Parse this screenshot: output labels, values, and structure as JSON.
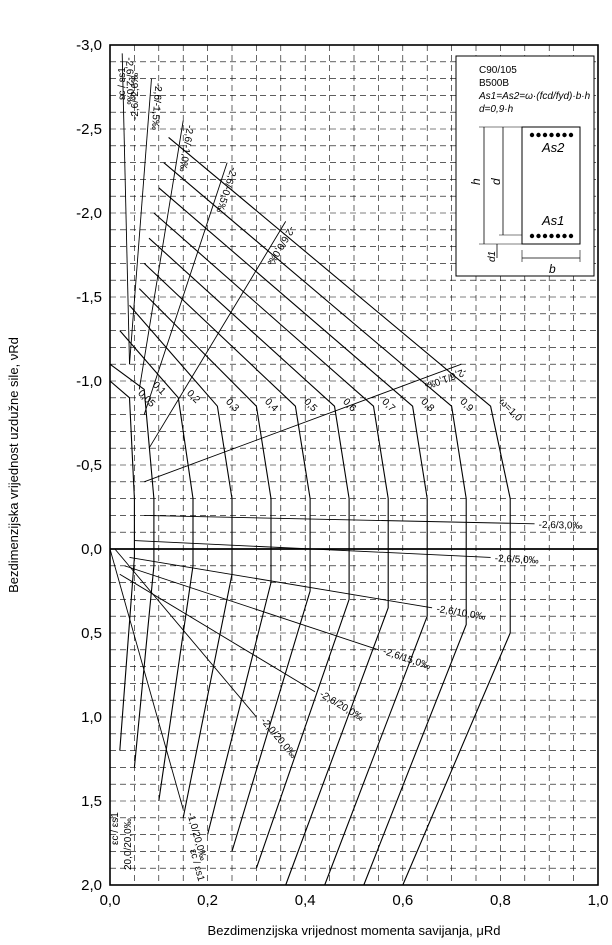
{
  "chart_data": {
    "type": "line",
    "title": "",
    "xlabel": "Bezdimenzijska vrijednost momenta savijanja, μRd",
    "ylabel": "Bezdimenzijska vrijednost uzdužne sile, νRd",
    "xlim": [
      0,
      1.0
    ],
    "ylim": [
      -3.0,
      2.0
    ],
    "y_inverted": true,
    "grid": true,
    "x_ticks": [
      0.0,
      0.2,
      0.4,
      0.6,
      0.8,
      1.0
    ],
    "y_ticks": [
      -3.0,
      -2.5,
      -2.0,
      -1.5,
      -1.0,
      -0.5,
      0.0,
      0.5,
      1.0,
      1.5,
      2.0
    ],
    "x_tick_labels": [
      "0,0",
      "0,2",
      "0,4",
      "0,6",
      "0,8",
      "1,0"
    ],
    "y_tick_labels": [
      "-3,0",
      "-2,5",
      "-2,0",
      "-1,5",
      "-1,0",
      "-0,5",
      "0,0",
      "0,5",
      "1,0",
      "1,5",
      "2,0"
    ],
    "omega_labels": [
      "0,05",
      "0,1",
      "0,2",
      "0,3",
      "0,4",
      "0,5",
      "0,6",
      "0,7",
      "0,8",
      "0,9",
      "ω=1,0"
    ],
    "omega_series": [
      {
        "omega": 0.05,
        "points": [
          [
            0.0,
            -1.0
          ],
          [
            0.04,
            -0.9
          ],
          [
            0.05,
            -0.3
          ],
          [
            0.05,
            0.05
          ],
          [
            0.02,
            1.2
          ]
        ]
      },
      {
        "omega": 0.1,
        "points": [
          [
            0.0,
            -1.1
          ],
          [
            0.07,
            -0.95
          ],
          [
            0.09,
            -0.3
          ],
          [
            0.09,
            0.1
          ],
          [
            0.05,
            1.3
          ]
        ]
      },
      {
        "omega": 0.2,
        "points": [
          [
            0.02,
            -1.3
          ],
          [
            0.14,
            -0.9
          ],
          [
            0.17,
            -0.3
          ],
          [
            0.17,
            0.1
          ],
          [
            0.1,
            1.5
          ]
        ]
      },
      {
        "omega": 0.3,
        "points": [
          [
            0.04,
            -1.45
          ],
          [
            0.22,
            -0.85
          ],
          [
            0.25,
            -0.3
          ],
          [
            0.25,
            0.15
          ],
          [
            0.15,
            1.6
          ]
        ]
      },
      {
        "omega": 0.4,
        "points": [
          [
            0.06,
            -1.55
          ],
          [
            0.3,
            -0.85
          ],
          [
            0.33,
            -0.3
          ],
          [
            0.33,
            0.2
          ],
          [
            0.2,
            1.7
          ]
        ]
      },
      {
        "omega": 0.5,
        "points": [
          [
            0.07,
            -1.7
          ],
          [
            0.38,
            -0.85
          ],
          [
            0.41,
            -0.3
          ],
          [
            0.41,
            0.25
          ],
          [
            0.25,
            1.8
          ]
        ]
      },
      {
        "omega": 0.6,
        "points": [
          [
            0.08,
            -1.85
          ],
          [
            0.46,
            -0.85
          ],
          [
            0.49,
            -0.3
          ],
          [
            0.49,
            0.3
          ],
          [
            0.3,
            1.9
          ]
        ]
      },
      {
        "omega": 0.7,
        "points": [
          [
            0.09,
            -2.0
          ],
          [
            0.54,
            -0.85
          ],
          [
            0.57,
            -0.3
          ],
          [
            0.57,
            0.35
          ],
          [
            0.36,
            2.0
          ]
        ]
      },
      {
        "omega": 0.8,
        "points": [
          [
            0.1,
            -2.15
          ],
          [
            0.62,
            -0.85
          ],
          [
            0.65,
            -0.3
          ],
          [
            0.65,
            0.4
          ],
          [
            0.44,
            2.0
          ]
        ]
      },
      {
        "omega": 0.9,
        "points": [
          [
            0.11,
            -2.3
          ],
          [
            0.7,
            -0.85
          ],
          [
            0.73,
            -0.3
          ],
          [
            0.73,
            0.45
          ],
          [
            0.52,
            2.0
          ]
        ]
      },
      {
        "omega": 1.0,
        "points": [
          [
            0.12,
            -2.45
          ],
          [
            0.78,
            -0.85
          ],
          [
            0.82,
            -0.3
          ],
          [
            0.82,
            0.5
          ],
          [
            0.6,
            2.0
          ]
        ]
      }
    ],
    "strain_labels": [
      "-2,6/-2,0‰",
      "-2,6/-1,5‰",
      "-2,6/-1,0‰",
      "-2,6/-0,5‰",
      "-2,6/0,0‰",
      "-2,6/1,0‰",
      "-2,6/3,0‰",
      "-2,6/5,0‰",
      "-2,6/10,0‰",
      "-2,6/15,0‰",
      "-2,6/20,0‰",
      "-2,0/20,0‰",
      "-1,0/20,0‰"
    ],
    "strain_series": [
      {
        "label": "-2,6/-2,0‰",
        "points": [
          [
            0.025,
            -2.95
          ],
          [
            0.04,
            -1.1
          ]
        ]
      },
      {
        "label": "-2,6/-1,5‰",
        "points": [
          [
            0.085,
            -2.8
          ],
          [
            0.04,
            -1.1
          ]
        ]
      },
      {
        "label": "-2,6/-1,0‰",
        "points": [
          [
            0.15,
            -2.55
          ],
          [
            0.06,
            -0.95
          ]
        ]
      },
      {
        "label": "-2,6/-0,5‰",
        "points": [
          [
            0.24,
            -2.3
          ],
          [
            0.07,
            -0.8
          ]
        ]
      },
      {
        "label": "-2,6/0,0‰",
        "points": [
          [
            0.36,
            -1.95
          ],
          [
            0.08,
            -0.6
          ]
        ]
      },
      {
        "label": "-2,6/1,0‰",
        "points": [
          [
            0.72,
            -1.1
          ],
          [
            0.07,
            -0.4
          ]
        ]
      },
      {
        "label": "-2,6/3,0‰",
        "points": [
          [
            0.87,
            -0.15
          ],
          [
            0.07,
            -0.2
          ]
        ]
      },
      {
        "label": "-2,6/5,0‰",
        "points": [
          [
            0.78,
            0.05
          ],
          [
            0.05,
            -0.05
          ]
        ]
      },
      {
        "label": "-2,6/10,0‰",
        "points": [
          [
            0.66,
            0.35
          ],
          [
            0.04,
            0.05
          ]
        ]
      },
      {
        "label": "-2,6/15,0‰",
        "points": [
          [
            0.55,
            0.6
          ],
          [
            0.03,
            0.1
          ]
        ]
      },
      {
        "label": "-2,6/20,0‰",
        "points": [
          [
            0.42,
            0.85
          ],
          [
            0.02,
            0.15
          ]
        ]
      },
      {
        "label": "-2,0/20,0‰",
        "points": [
          [
            0.3,
            1.0
          ],
          [
            0.01,
            0.0
          ]
        ]
      },
      {
        "label": "-1,0/20,0‰",
        "points": [
          [
            0.15,
            1.55
          ],
          [
            0.0,
            0.0
          ]
        ]
      }
    ],
    "corner_labels": {
      "top_axis": "εc / εs1",
      "top_value": "-2,6/-2,6‰",
      "bottom_axis": "εc / εs1",
      "bottom_value": "20,0/20,0‰",
      "bottom_right_axis": "εc / εs1"
    }
  },
  "legend": {
    "concrete": "C90/105",
    "steel": "B500B",
    "formula1": "As1=As2=ω·(fcd/fyd)·b·h",
    "formula2": "d=0,9·h",
    "h_label": "h",
    "d_label": "d",
    "d1_label": "d1",
    "b_label": "b",
    "as1_label": "As1",
    "as2_label": "As2"
  }
}
